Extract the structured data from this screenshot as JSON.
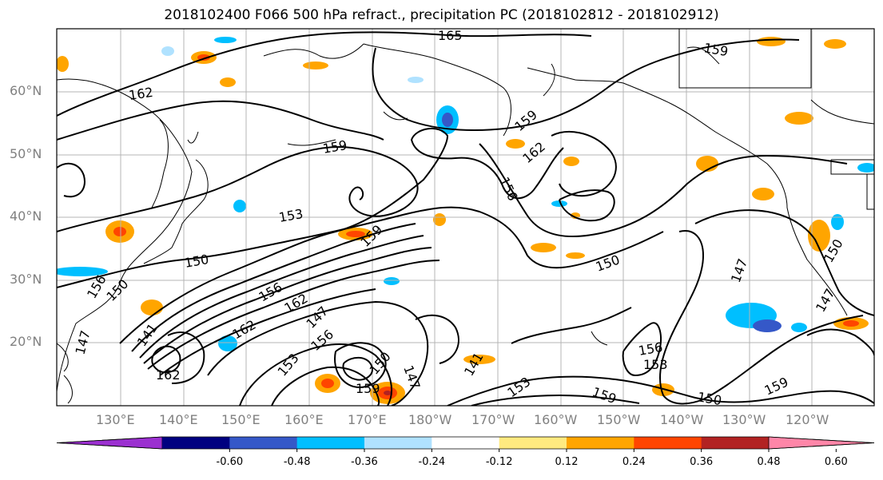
{
  "title": "2018102400 F066 500 hPa refract., precipitation PC (2018102812 - 2018102912)",
  "lat_labels": [
    "60°N",
    "50°N",
    "40°N",
    "30°N",
    "20°N"
  ],
  "lon_labels": [
    "130°E",
    "140°E",
    "150°E",
    "160°E",
    "170°E",
    "180°W",
    "170°W",
    "160°W",
    "150°W",
    "140°W",
    "130°W",
    "120°W"
  ],
  "colorbar": {
    "colors": [
      "#9b30d0",
      "#000080",
      "#3558c8",
      "#00bfff",
      "#b0e2ff",
      "#ffffff",
      "#ffea80",
      "#ffa500",
      "#ff4500",
      "#b22222",
      "#ff86a8"
    ],
    "tick_labels": [
      "-0.60",
      "-0.48",
      "-0.36",
      "-0.24",
      "-0.12",
      "0.12",
      "0.24",
      "0.36",
      "0.48",
      "0.60"
    ]
  },
  "contour_labels": [
    "165",
    "159",
    "162",
    "159",
    "159",
    "162",
    "156",
    "153",
    "159",
    "150",
    "150",
    "147",
    "156",
    "162",
    "147",
    "162",
    "156",
    "153",
    "156",
    "153",
    "150",
    "159",
    "159",
    "150",
    "147",
    "147",
    "150",
    "141",
    "153",
    "162",
    "159",
    "150",
    "156",
    "147",
    "141"
  ]
}
